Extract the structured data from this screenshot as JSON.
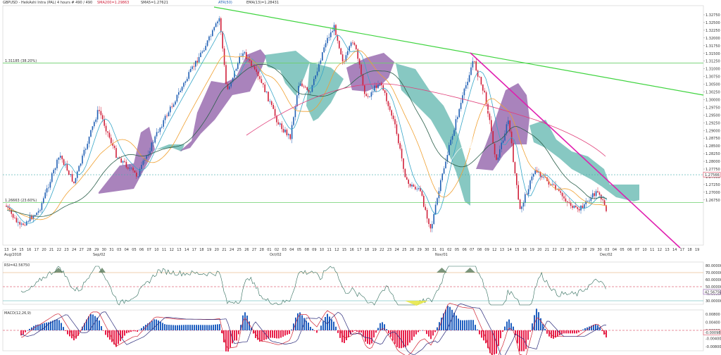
{
  "header": {
    "symbol_line": "GBPUSD - HeikAshi Intra (PAL) 4 hours # 490 / 490",
    "sma_label": "SMA200=1.29863",
    "sma2_label": "SMA5=1.27621",
    "atr_label": "ATR(50)",
    "ema_label": "EMA(13)=1.28431"
  },
  "panes": {
    "rsi_label": "RSI=42.56750",
    "macd_label": "MACD(12,26,9)"
  },
  "colors": {
    "bull": "#1f5fb4",
    "bear": "#d0203a",
    "trend_green": "#3fd43f",
    "trend_magenta": "#e020b0",
    "cloud_purple": "#8c5aa6",
    "cloud_teal": "#5fb5ae",
    "fib_green": "#6cd06c"
  },
  "chart_data": {
    "type": "line",
    "price_ticks": [
      "1.32750",
      "1.32500",
      "1.32250",
      "1.32000",
      "1.31750",
      "1.31500",
      "1.31250",
      "1.31000",
      "1.30750",
      "1.30500",
      "1.30250",
      "1.30000",
      "1.29750",
      "1.29500",
      "1.29250",
      "1.29000",
      "1.28750",
      "1.28500",
      "1.28250",
      "1.28000",
      "1.27750",
      "1.27500",
      "1.27250",
      "1.27000",
      "1.26750"
    ],
    "current_price": "1.27566",
    "fib_levels": [
      {
        "label": "1.31185 (38.20%)",
        "price": 1.31185
      },
      {
        "label": "1.26663 (23.60%)",
        "price": 1.26663
      }
    ],
    "date_labels": [
      "13",
      "14",
      "15",
      "16",
      "17",
      "20",
      "21",
      "22",
      "23",
      "24",
      "27",
      "28",
      "29",
      "30",
      "31",
      "03",
      "04",
      "05",
      "06",
      "07",
      "10",
      "11",
      "12",
      "13",
      "14",
      "17",
      "18",
      "19",
      "20",
      "21",
      "24",
      "25",
      "26",
      "27",
      "28",
      "01",
      "02",
      "03",
      "04",
      "05",
      "08",
      "09",
      "10",
      "11",
      "12",
      "15",
      "16",
      "17",
      "18",
      "19",
      "22",
      "23",
      "24",
      "25",
      "26",
      "29",
      "30",
      "31",
      "01",
      "02",
      "05",
      "06",
      "07",
      "08",
      "09",
      "12",
      "13",
      "14",
      "15",
      "16",
      "19",
      "20",
      "21",
      "22",
      "23",
      "26",
      "27",
      "28",
      "29",
      "30",
      "03",
      "04",
      "05",
      "06",
      "07",
      "10",
      "11",
      "12",
      "13",
      "14",
      "17",
      "18",
      "19"
    ],
    "month_labels": [
      "Aug/2018",
      "Sep/02",
      "Oct/02",
      "Nov/01",
      "Dec/02"
    ],
    "rsi_ticks": [
      "80.00000",
      "70.00000",
      "60.00000",
      "50.00000",
      "40.00000",
      "30.00000"
    ],
    "rsi_value": "42.56750",
    "macd_ticks": [
      "0.00800",
      "0.00400",
      "0.00000",
      "-0.00400",
      "-0.00800"
    ],
    "macd_value": "-0.00098"
  }
}
